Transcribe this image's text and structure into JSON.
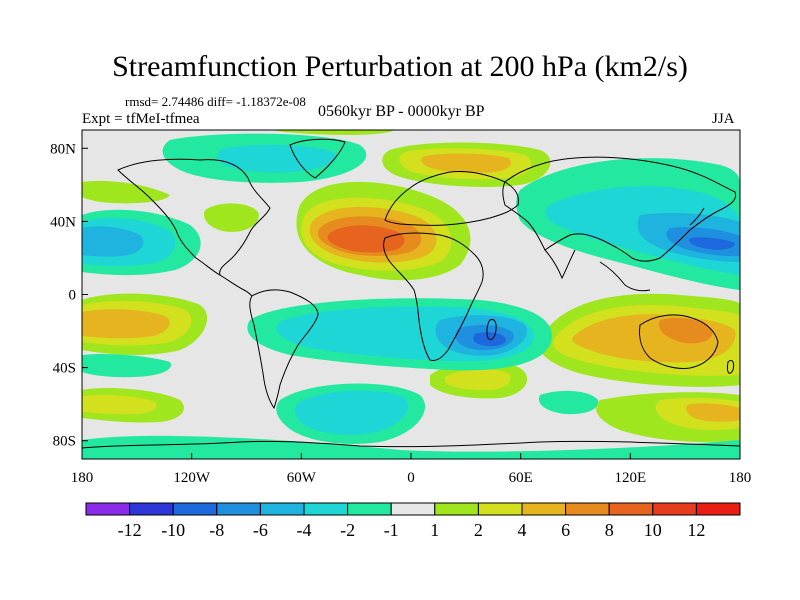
{
  "title": "Streamfunction Perturbation at 200 hPa (km2/s)",
  "stats": "rmsd= 2.74486 diff= -1.18372e-08",
  "experiment": "Expt = tfMeI-tfmea",
  "period": "0560kyr BP - 0000kyr BP",
  "season": "JJA",
  "map": {
    "projection": "cylindrical equidistant",
    "background_color": "#e6e6e6",
    "coastline_color": "#000000",
    "lon_ticks": [
      "180",
      "120W",
      "60W",
      "0",
      "60E",
      "120E",
      "180"
    ],
    "lat_ticks": [
      "80N",
      "40N",
      "0",
      "40S",
      "80S"
    ],
    "lon_range": [
      -180,
      180
    ],
    "lat_range": [
      -90,
      90
    ]
  },
  "colorbar": {
    "labels": [
      "-12",
      "-10",
      "-8",
      "-6",
      "-4",
      "-2",
      "-1",
      "1",
      "2",
      "4",
      "6",
      "8",
      "10",
      "12"
    ],
    "colors": [
      "#8b2bea",
      "#2f36d8",
      "#1e68de",
      "#1f8fe0",
      "#1fb3e0",
      "#1fd6d6",
      "#22e8a0",
      "#e6e6e6",
      "#a0e61e",
      "#d2e01e",
      "#e6b41e",
      "#e68c1e",
      "#e6641e",
      "#e63c1e",
      "#e81e14"
    ]
  }
}
